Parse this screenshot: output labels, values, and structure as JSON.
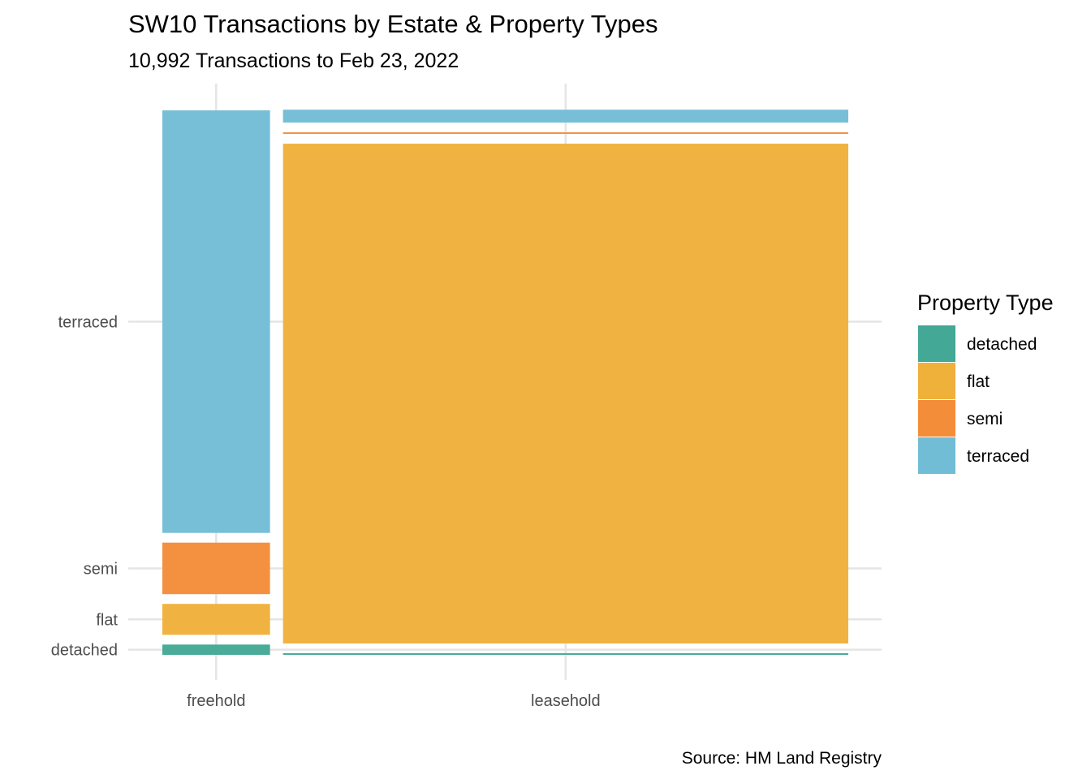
{
  "chart_data": {
    "type": "mosaic",
    "title": "SW10 Transactions by Estate & Property Types",
    "subtitle": "10,992 Transactions to Feb 23, 2022",
    "caption": "Source: HM Land Registry",
    "legend": {
      "title": "Property Type",
      "position": "right"
    },
    "x_categories": [
      "freehold",
      "leasehold"
    ],
    "y_tick_labels": [
      "detached",
      "flat",
      "semi",
      "terraced"
    ],
    "property_types": [
      "detached",
      "flat",
      "semi",
      "terraced"
    ],
    "colors": {
      "detached": "#43a895",
      "flat": "#f0b13b",
      "semi": "#f48d3a",
      "terraced": "#72bdd6"
    },
    "grid": true,
    "columns": [
      {
        "estate": "freehold",
        "share": 0.16,
        "segments": [
          {
            "type": "detached",
            "share": 0.02
          },
          {
            "type": "flat",
            "share": 0.06
          },
          {
            "type": "semi",
            "share": 0.1
          },
          {
            "type": "terraced",
            "share": 0.82
          }
        ]
      },
      {
        "estate": "leasehold",
        "share": 0.84,
        "segments": [
          {
            "type": "detached",
            "share": 0.002
          },
          {
            "type": "flat",
            "share": 0.97
          },
          {
            "type": "semi",
            "share": 0.003
          },
          {
            "type": "terraced",
            "share": 0.025
          }
        ]
      }
    ]
  }
}
